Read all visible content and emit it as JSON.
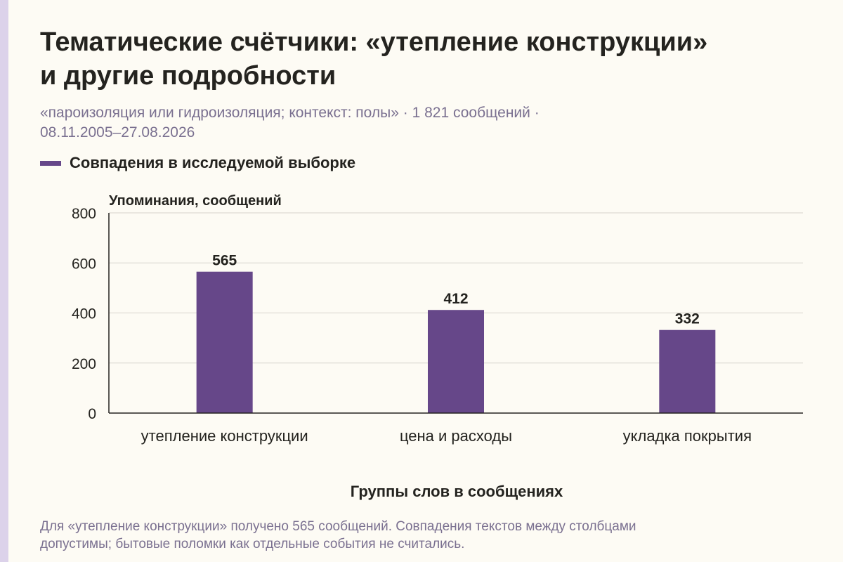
{
  "header": {
    "title_lines": [
      "Тематические счётчики: «утепление конструкции»",
      "и другие подробности"
    ],
    "subtitle_lines": [
      "«пароизоляция или гидроизоляция; контекст: полы» · 1 821 сообщений ·",
      "08.11.2005–27.08.2026"
    ]
  },
  "legend": {
    "label": "Совпадения в исследуемой выборке",
    "color": "#664789"
  },
  "chart_data": {
    "type": "bar",
    "categories": [
      "утепление конструкции",
      "цена и расходы",
      "укладка покрытия"
    ],
    "series": [
      {
        "name": "Совпадения в исследуемой выборке",
        "values": [
          565,
          412,
          332
        ]
      }
    ],
    "value_labels": [
      "565",
      "412",
      "332"
    ],
    "ylabel": "Упоминания, сообщений",
    "xlabel": "Группы слов в сообщениях",
    "ylim": [
      0,
      800
    ],
    "yticks": [
      0,
      200,
      400,
      600,
      800
    ],
    "grid": true,
    "legend_position": "top-left",
    "colors": {
      "bar": "#664789",
      "grid": "#d6d3cc",
      "axis": "#24231f"
    }
  },
  "footnote": {
    "lines": [
      "Для «утепление конструкции» получено 565 сообщений. Совпадения текстов между столбцами",
      "допустимы; бытовые поломки как отдельные события не считались."
    ]
  }
}
